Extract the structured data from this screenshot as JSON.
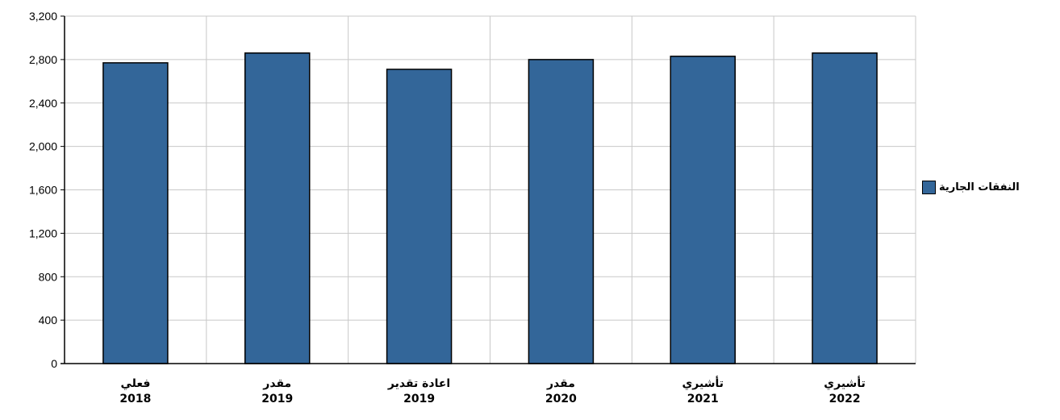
{
  "chart_data": {
    "type": "bar",
    "categories": [
      {
        "line1": "فعلي",
        "line2": "2018"
      },
      {
        "line1": "مقدر",
        "line2": "2019"
      },
      {
        "line1": "اعادة تقدير",
        "line2": "2019"
      },
      {
        "line1": "مقدر",
        "line2": "2020"
      },
      {
        "line1": "تأشيري",
        "line2": "2021"
      },
      {
        "line1": "تأشيري",
        "line2": "2022"
      }
    ],
    "series": [
      {
        "name": "النفقات الجارية",
        "values": [
          2770,
          2860,
          2710,
          2800,
          2830,
          2860
        ]
      }
    ],
    "ylim": [
      0,
      3200
    ],
    "yticks": [
      "0",
      "400",
      "800",
      "1,200",
      "1,600",
      "2,000",
      "2,400",
      "2,800",
      "3,200"
    ],
    "grid": true,
    "legend_position": "right",
    "colors": {
      "bar": "#336699",
      "bar_border": "#000000",
      "grid": "#c8c8c8"
    }
  }
}
